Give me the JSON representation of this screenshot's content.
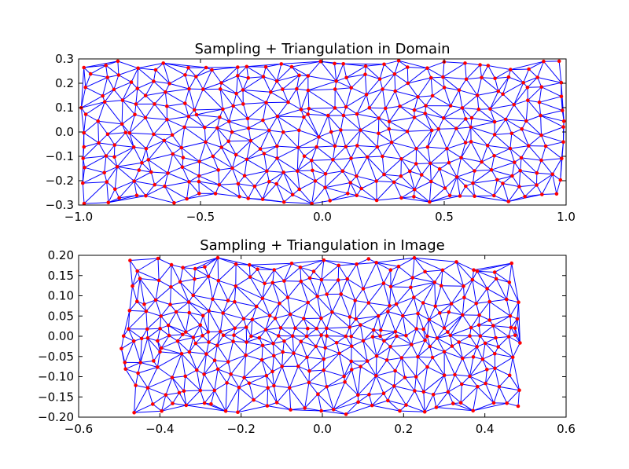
{
  "chart_data": [
    {
      "type": "scatter",
      "title": "Sampling + Triangulation in Domain",
      "xlabel": "",
      "ylabel": "",
      "xlim": [
        -1.0,
        1.0
      ],
      "ylim": [
        -0.3,
        0.3
      ],
      "xticks": [
        "−1.0",
        "−0.5",
        "0.0",
        "0.5",
        "1.0"
      ],
      "xtick_values": [
        -1.0,
        -0.5,
        0.0,
        0.5,
        1.0
      ],
      "yticks": [
        "−0.3",
        "−0.2",
        "−0.1",
        "0.0",
        "0.1",
        "0.2",
        "0.3"
      ],
      "ytick_values": [
        -0.3,
        -0.2,
        -0.1,
        0.0,
        0.1,
        0.2,
        0.3
      ],
      "grid": false,
      "point_color": "#ff0000",
      "edge_color": "#0000ff",
      "mesh": "triangulation of sampled points (Delaunay)",
      "approx_point_count": 330,
      "x_sample_range": [
        -1.0,
        1.0
      ],
      "y_sample_range": [
        -0.3,
        0.3
      ]
    },
    {
      "type": "scatter",
      "title": "Sampling + Triangulation in Image",
      "xlabel": "",
      "ylabel": "",
      "xlim": [
        -0.6,
        0.6
      ],
      "ylim": [
        -0.2,
        0.2
      ],
      "xticks": [
        "−0.6",
        "−0.4",
        "−0.2",
        "0.0",
        "0.2",
        "0.4",
        "0.6"
      ],
      "xtick_values": [
        -0.6,
        -0.4,
        -0.2,
        0.0,
        0.2,
        0.4,
        0.6
      ],
      "yticks": [
        "−0.20",
        "−0.15",
        "−0.10",
        "−0.05",
        "0.00",
        "0.05",
        "0.10",
        "0.15",
        "0.20"
      ],
      "ytick_values": [
        -0.2,
        -0.15,
        -0.1,
        -0.05,
        0.0,
        0.05,
        0.1,
        0.15,
        0.2
      ],
      "grid": false,
      "point_color": "#ff0000",
      "edge_color": "#0000ff",
      "mesh": "triangulation of mapped points",
      "approx_point_count": 330,
      "x_sample_range": [
        -0.5,
        0.5
      ],
      "y_sample_range": [
        -0.2,
        0.2
      ]
    }
  ]
}
